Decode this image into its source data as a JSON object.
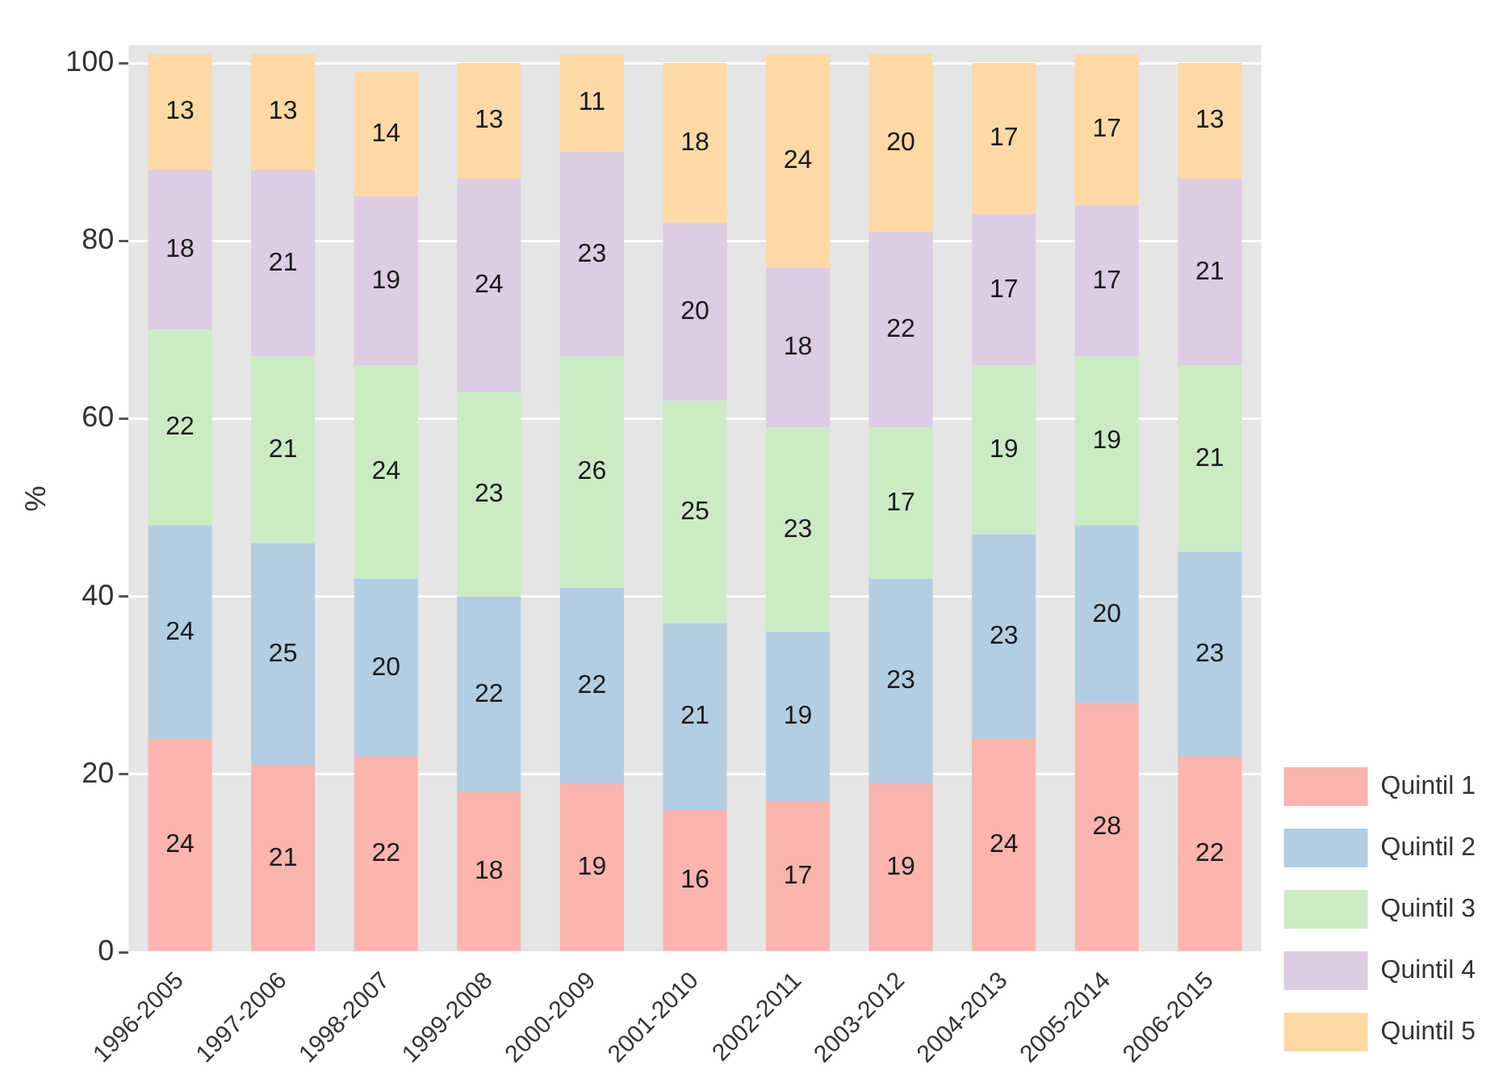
{
  "chart_data": {
    "type": "bar",
    "ylabel": "%",
    "stacked": true,
    "data_labels": true,
    "legend": "right",
    "grid": "y",
    "categories": [
      "1996-2005",
      "1997-2006",
      "1998-2007",
      "1999-2008",
      "2000-2009",
      "2001-2010",
      "2002-2011",
      "2003-2012",
      "2004-2013",
      "2005-2014",
      "2006-2015"
    ],
    "ylim": [
      0,
      102
    ],
    "yticks": [
      0,
      20,
      40,
      60,
      80,
      100
    ],
    "series": [
      {
        "name": "Quintil 1",
        "color": "#fbb4ae",
        "values": [
          24,
          21,
          22,
          18,
          19,
          16,
          17,
          19,
          24,
          28,
          22
        ]
      },
      {
        "name": "Quintil 2",
        "color": "#b3cde3",
        "values": [
          24,
          25,
          20,
          22,
          22,
          21,
          19,
          23,
          23,
          20,
          23
        ]
      },
      {
        "name": "Quintil 3",
        "color": "#ccebc5",
        "values": [
          22,
          21,
          24,
          23,
          26,
          25,
          23,
          17,
          19,
          19,
          21
        ]
      },
      {
        "name": "Quintil 4",
        "color": "#decbe4",
        "values": [
          18,
          21,
          19,
          24,
          23,
          20,
          18,
          22,
          17,
          17,
          21
        ]
      },
      {
        "name": "Quintil 5",
        "color": "#fed9a6",
        "values": [
          13,
          13,
          14,
          13,
          11,
          18,
          24,
          20,
          17,
          17,
          13
        ]
      }
    ]
  }
}
